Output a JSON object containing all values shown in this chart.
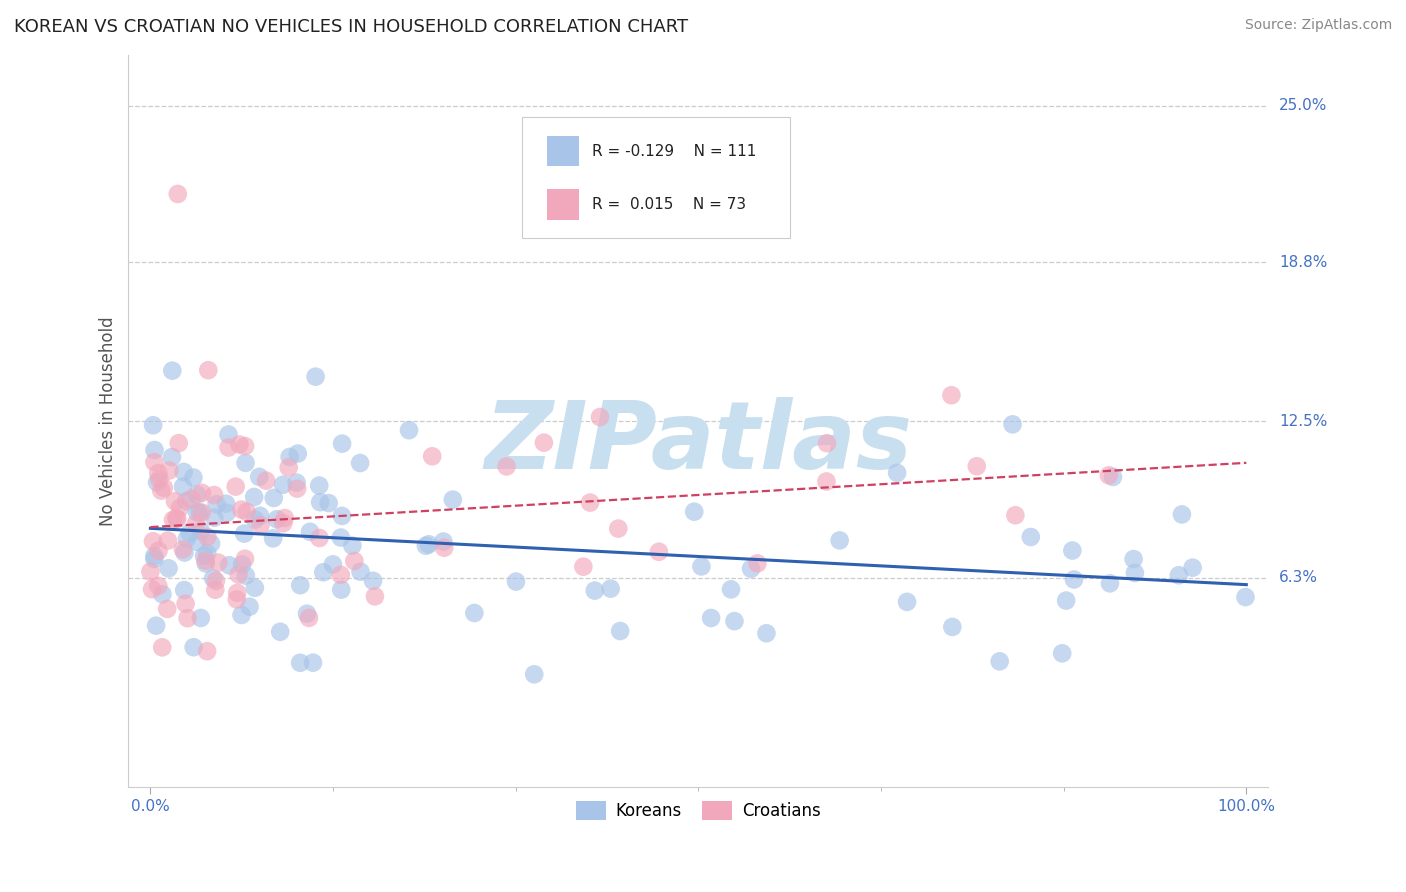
{
  "title": "KOREAN VS CROATIAN NO VEHICLES IN HOUSEHOLD CORRELATION CHART",
  "source": "Source: ZipAtlas.com",
  "ylabel": "No Vehicles in Household",
  "y_tick_labels": [
    "6.3%",
    "12.5%",
    "18.8%",
    "25.0%"
  ],
  "y_tick_values": [
    0.063,
    0.125,
    0.188,
    0.25
  ],
  "x_tick_labels": [
    "0.0%",
    "100.0%"
  ],
  "xlim": [
    -0.02,
    1.02
  ],
  "ylim": [
    -0.02,
    0.27
  ],
  "korean_R": -0.129,
  "korean_N": 111,
  "croatian_R": 0.015,
  "croatian_N": 73,
  "korean_color": "#a8c4e8",
  "croatian_color": "#f2a8bc",
  "korean_line_color": "#3060b0",
  "croatian_line_color": "#d04060",
  "background_color": "#ffffff",
  "grid_color": "#cccccc",
  "watermark_color": "#c8dff0",
  "title_color": "#222222",
  "source_color": "#888888",
  "axis_label_color": "#555555",
  "tick_color": "#4472c4",
  "legend_border_color": "#cccccc"
}
